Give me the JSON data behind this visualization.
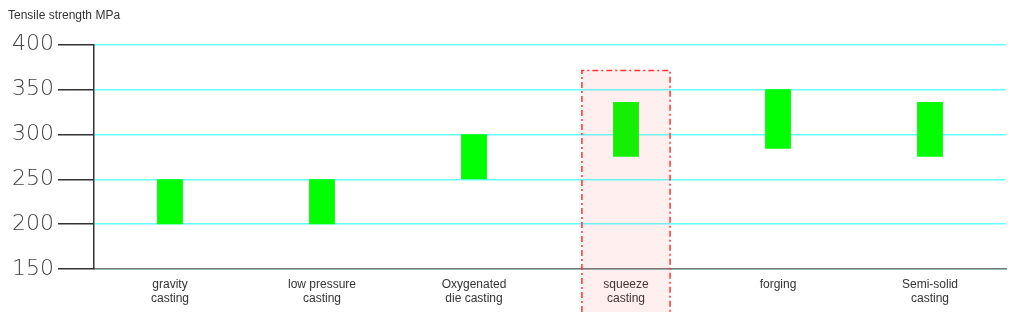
{
  "chart_data": {
    "type": "bar",
    "title": "Tensile strength MPa",
    "categories": [
      "gravity\ncasting",
      "low pressure\ncasting",
      "Oxygenated\ndie casting",
      "squeeze\ncasting",
      "forging",
      "Semi-solid\ncasting"
    ],
    "base": [
      200,
      200,
      250,
      275,
      284,
      275
    ],
    "values": [
      50,
      50,
      50,
      61,
      66,
      61
    ],
    "color": "#00ff00",
    "bands": [
      {
        "axis": "x",
        "from": "squeeze\ncasting",
        "to": "squeeze\ncasting",
        "color": "#ff3333"
      }
    ],
    "ylim": [
      150,
      400
    ],
    "yticks": [
      150,
      200,
      250,
      300,
      350,
      400
    ],
    "grid": "y"
  }
}
